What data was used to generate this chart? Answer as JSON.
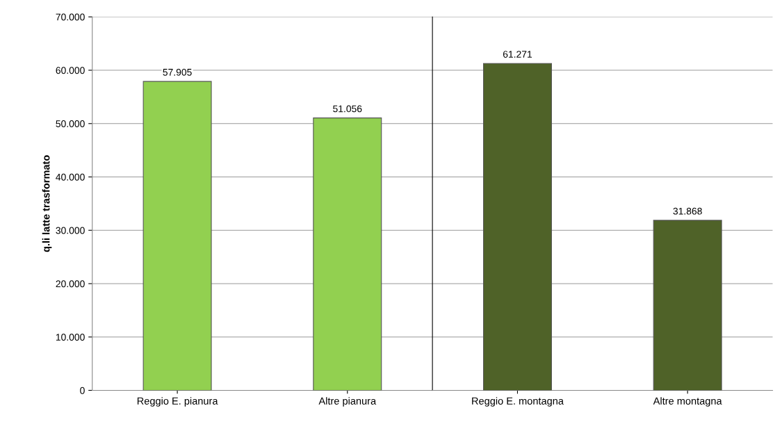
{
  "chart_data": [
    {
      "type": "bar",
      "ylabel": "q.li latte trasformato",
      "categories": [
        "Reggio E. pianura",
        "Altre pianura"
      ],
      "values": [
        57905,
        51056
      ],
      "colors": [
        "#92d050",
        "#92d050"
      ],
      "value_labels": [
        "57.905",
        "51.056"
      ],
      "ylim": [
        0,
        70000
      ],
      "yticks": [
        {
          "value": 0,
          "label": "0"
        },
        {
          "value": 10000,
          "label": "10.000"
        },
        {
          "value": 20000,
          "label": "20.000"
        },
        {
          "value": 30000,
          "label": "30.000"
        },
        {
          "value": 40000,
          "label": "40.000"
        },
        {
          "value": 50000,
          "label": "50.000"
        },
        {
          "value": 60000,
          "label": "60.000"
        },
        {
          "value": 70000,
          "label": "70.000"
        }
      ],
      "grid": "y"
    },
    {
      "type": "bar",
      "categories": [
        "Reggio E. montagna",
        "Altre montagna"
      ],
      "values": [
        61271,
        31868
      ],
      "colors": [
        "#4f6228",
        "#4f6228"
      ],
      "value_labels": [
        "61.271",
        "31.868"
      ],
      "ylim": [
        0,
        70000
      ],
      "yticks": [
        {
          "value": 0,
          "label": null
        },
        {
          "value": 10000,
          "label": null
        },
        {
          "value": 20000,
          "label": null
        },
        {
          "value": 30000,
          "label": null
        },
        {
          "value": 40000,
          "label": null
        },
        {
          "value": 50000,
          "label": null
        },
        {
          "value": 60000,
          "label": null
        },
        {
          "value": 70000,
          "label": null
        }
      ],
      "grid": "y",
      "tick_labels": "x"
    }
  ]
}
